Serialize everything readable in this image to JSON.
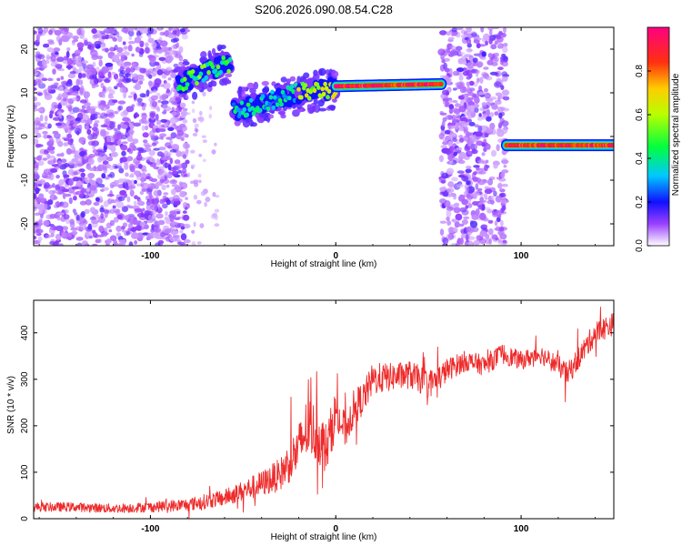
{
  "figure_title": "S206.2026.090.08.54.C28",
  "chart_data": [
    {
      "type": "heatmap",
      "title": "S206.2026.090.08.54.C28",
      "xlabel": "Height of straight line (km)",
      "ylabel": "Frequency (Hz)",
      "xlim": [
        -163,
        150
      ],
      "ylim": [
        -25,
        25
      ],
      "xticks": [
        -100,
        0,
        100
      ],
      "xtick_labels": [
        "-100",
        "0",
        "100"
      ],
      "yticks": [
        -20,
        -10,
        0,
        10,
        20
      ],
      "ytick_labels": [
        "-20",
        "-10",
        "0",
        "10",
        "20"
      ],
      "colorbar": {
        "label": "Normalized spectral amplitude",
        "range": [
          0,
          1
        ],
        "ticks": [
          0.0,
          0.2,
          0.4,
          0.6,
          0.8
        ],
        "tick_labels": [
          "0.0",
          "0.2",
          "0.4",
          "0.6",
          "0.8"
        ],
        "colors": [
          "#ffffff",
          "#7a00ff",
          "#0000ff",
          "#00d8ff",
          "#00ff30",
          "#ffff00",
          "#ff9000",
          "#ff1010",
          "#ff0080"
        ]
      },
      "ridge_segments": [
        {
          "x": [
            -85,
            -57
          ],
          "freq": [
            12,
            17
          ],
          "amplitude": 0.45
        },
        {
          "x": [
            -55,
            -20
          ],
          "freq": [
            6,
            10
          ],
          "amplitude": 0.35
        },
        {
          "x": [
            -20,
            0
          ],
          "freq": [
            10,
            11
          ],
          "amplitude": 0.6
        },
        {
          "x": [
            0,
            57
          ],
          "freq": [
            11.5,
            12
          ],
          "amplitude": 0.9
        },
        {
          "x": [
            92,
            150
          ],
          "freq": [
            -2,
            -2
          ],
          "amplitude": 0.9
        }
      ],
      "noise_regions": [
        {
          "x": [
            -163,
            -80
          ],
          "freq": [
            -25,
            25
          ],
          "amplitude": 0.12
        },
        {
          "x": [
            57,
            92
          ],
          "freq": [
            -25,
            25
          ],
          "amplitude": 0.12
        }
      ]
    },
    {
      "type": "line",
      "title": "",
      "xlabel": "Height of straight line (km)",
      "ylabel": "SNR (10 * v/v)",
      "xlim": [
        -163,
        150
      ],
      "ylim": [
        0,
        470
      ],
      "xticks": [
        -100,
        0,
        100
      ],
      "xtick_labels": [
        "-100",
        "0",
        "100"
      ],
      "yticks": [
        0,
        100,
        200,
        300,
        400
      ],
      "ytick_labels": [
        "0",
        "100",
        "200",
        "300",
        "400"
      ],
      "series": [
        {
          "name": "SNR",
          "color": "#ee2a2a",
          "x": [
            -163,
            -140,
            -120,
            -100,
            -80,
            -60,
            -50,
            -40,
            -30,
            -20,
            -15,
            -10,
            -5,
            0,
            5,
            10,
            15,
            20,
            30,
            40,
            50,
            55,
            60,
            70,
            80,
            90,
            100,
            110,
            120,
            125,
            130,
            140,
            150
          ],
          "y": [
            25,
            25,
            22,
            25,
            30,
            45,
            60,
            75,
            95,
            150,
            200,
            180,
            150,
            230,
            190,
            240,
            260,
            300,
            305,
            310,
            290,
            300,
            320,
            340,
            330,
            355,
            340,
            355,
            330,
            310,
            340,
            400,
            420
          ],
          "noise": [
            10,
            10,
            10,
            11,
            14,
            18,
            22,
            28,
            35,
            55,
            70,
            60,
            55,
            50,
            40,
            40,
            35,
            35,
            30,
            30,
            30,
            30,
            25,
            22,
            22,
            22,
            20,
            20,
            22,
            25,
            25,
            25,
            25
          ]
        }
      ]
    }
  ]
}
